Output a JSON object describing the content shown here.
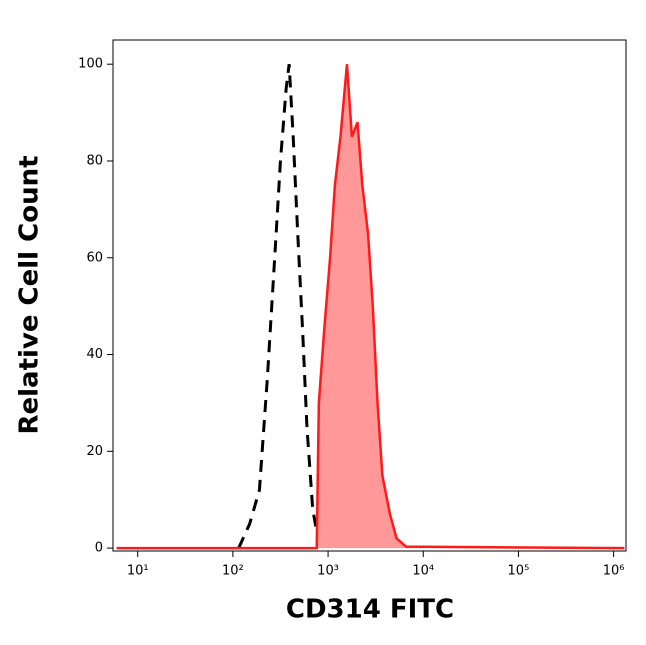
{
  "chart_data": {
    "type": "line",
    "x_label": "CD314 FITC",
    "y_label": "Relative Cell Count",
    "xscale": "log",
    "xlim": [
      5.5,
      1350000
    ],
    "ylim": [
      -0.6,
      105
    ],
    "xticks": [
      {
        "value": 10,
        "label": "10¹"
      },
      {
        "value": 100,
        "label": "10²"
      },
      {
        "value": 1000,
        "label": "10³"
      },
      {
        "value": 10000,
        "label": "10⁴"
      },
      {
        "value": 100000,
        "label": "10⁵"
      },
      {
        "value": 1000000,
        "label": "10⁶"
      }
    ],
    "yticks": [
      0,
      20,
      40,
      60,
      80,
      100
    ],
    "series": [
      {
        "color": "#000000",
        "dashed": true,
        "filled": false,
        "x": [
          115,
          150,
          190,
          230,
          275,
          316,
          363,
          390,
          430,
          480,
          540,
          600,
          690,
          800,
          950
        ],
        "values": [
          0,
          5,
          12,
          35,
          60,
          80,
          95,
          100,
          85,
          65,
          45,
          25,
          8,
          1,
          0
        ]
      },
      {
        "color": "#ff1a1a",
        "fill_color": "#ff9999",
        "dashed": false,
        "filled": true,
        "x": [
          6,
          700,
          760,
          800,
          910,
          1050,
          1180,
          1350,
          1580,
          1780,
          2040,
          2290,
          2630,
          2950,
          3310,
          3720,
          4470,
          5250,
          6610,
          1300000
        ],
        "values": [
          0,
          0,
          0,
          30,
          45,
          60,
          75,
          85,
          100,
          85,
          88,
          75,
          65,
          50,
          30,
          15,
          7,
          2,
          0.3,
          0
        ]
      }
    ]
  }
}
